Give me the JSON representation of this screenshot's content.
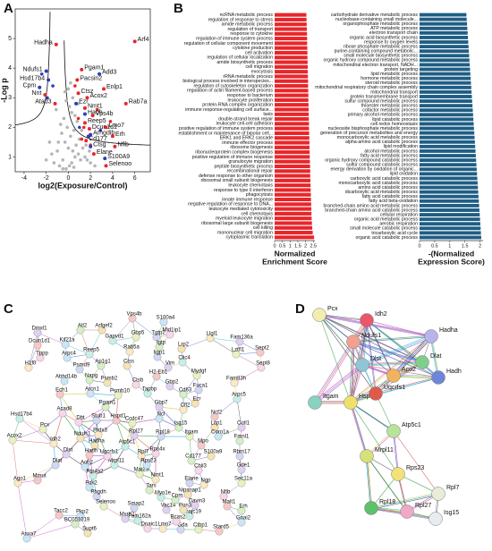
{
  "chart_data": [
    {
      "type": "scatter",
      "panel": "A",
      "x_label": "log2(Exposure/Control)",
      "y_label": "-Log p",
      "xlim": [
        -4.8,
        7.4
      ],
      "ylim": [
        0.5,
        6
      ],
      "xticks": [
        -4,
        -2,
        0,
        2,
        4,
        6
      ],
      "yticks": [
        1,
        2,
        3,
        4,
        5
      ],
      "series": [
        {
          "color": "#b5b5b5",
          "x": [
            -0.2,
            0.1,
            0.3,
            -0.5,
            0.6,
            -0.8,
            0.9,
            0.0,
            0.4,
            -0.3,
            1.1,
            -1.0,
            0.2,
            0.7,
            -0.6,
            1.3,
            -0.1,
            0.5,
            -1.3,
            1.5,
            0.8,
            -0.4,
            0.3,
            1.0,
            -0.9,
            1.7,
            0.1,
            -0.2,
            0.6,
            -1.5,
            2.0,
            0.4,
            -0.7,
            1.2,
            0.0,
            -1.1,
            1.6,
            0.2,
            -0.3,
            0.9,
            -2.0,
            2.4,
            -1.7,
            1.9,
            0.5,
            -0.5
          ],
          "y": [
            0.6,
            0.7,
            0.8,
            0.9,
            1.0,
            0.7,
            1.1,
            1.3,
            1.2,
            1.5,
            0.9,
            1.2,
            1.7,
            1.4,
            1.8,
            1.3,
            2.0,
            1.9,
            0.8,
            1.0,
            2.2,
            2.3,
            2.5,
            1.6,
            1.5,
            0.9,
            2.7,
            2.9,
            2.4,
            1.1,
            0.8,
            3.0,
            2.1,
            1.9,
            3.3,
            2.6,
            1.4,
            3.5,
            3.2,
            2.8,
            0.9,
            0.7,
            1.5,
            1.2,
            0.65,
            0.6
          ]
        },
        {
          "color": "#e8262a",
          "x": [
            0.9,
            1.4,
            2.6,
            3.8,
            0.6,
            1.2,
            2.0
          ],
          "y": [
            2.3,
            2.0,
            2.6,
            2.2,
            3.4,
            1.6,
            1.4
          ]
        },
        {
          "color": "#2a3fb8",
          "x": [
            -1.4,
            -2.4,
            1.0,
            1.8,
            2.9,
            -1.9
          ],
          "y": [
            3.4,
            3.8,
            2.0,
            1.7,
            1.9,
            3.0
          ]
        }
      ],
      "annotations": [
        {
          "text": "Hadha",
          "x": -1.1,
          "y": 4.8,
          "color": "#e8262a"
        },
        {
          "text": "Arf4",
          "x": 6.0,
          "y": 4.9,
          "color": "#e8262a"
        },
        {
          "text": "Pgam1",
          "x": 1.2,
          "y": 3.95,
          "color": "#e8262a"
        },
        {
          "text": "Ndufs1",
          "x": -2.0,
          "y": 3.9,
          "color": "#2a3fb8"
        },
        {
          "text": "Pacsin2",
          "x": 0.8,
          "y": 3.6,
          "color": "#e8262a"
        },
        {
          "text": "Add3",
          "x": 2.8,
          "y": 3.8,
          "color": "#2a3fb8"
        },
        {
          "text": "Hsd17b4",
          "x": -1.8,
          "y": 3.6,
          "color": "#2a3fb8"
        },
        {
          "text": "Cpm",
          "x": -2.6,
          "y": 3.35,
          "color": "#2a3fb8"
        },
        {
          "text": "Nnt",
          "x": -2.1,
          "y": 3.1,
          "color": "#e8262a"
        },
        {
          "text": "Ctsz",
          "x": 0.9,
          "y": 3.15,
          "color": "#e8262a"
        },
        {
          "text": "Acox2",
          "x": 1.7,
          "y": 3.0,
          "color": "#e8262a"
        },
        {
          "text": "Enlp1",
          "x": 3.2,
          "y": 3.3,
          "color": "#e8262a"
        },
        {
          "text": "Ezr",
          "x": 0.7,
          "y": 2.8,
          "color": "#2a3fb8"
        },
        {
          "text": "Nmt1",
          "x": 1.5,
          "y": 2.65,
          "color": "#e8262a"
        },
        {
          "text": "Hadh",
          "x": 1.5,
          "y": 2.45,
          "color": "#2a3fb8"
        },
        {
          "text": "Vps4b",
          "x": 2.2,
          "y": 2.4,
          "color": "#e8262a"
        },
        {
          "text": "Rab7a",
          "x": 5.2,
          "y": 2.8,
          "color": "#e8262a"
        },
        {
          "text": "Atad3",
          "x": -1.2,
          "y": 2.8,
          "color": "#e8262a"
        },
        {
          "text": "Reep5",
          "x": 1.5,
          "y": 2.15,
          "color": "#e8262a"
        },
        {
          "text": "Dcun1d1",
          "x": 1.9,
          "y": 1.95,
          "color": "#e8262a"
        },
        {
          "text": "Lmo7",
          "x": 3.4,
          "y": 2.0,
          "color": "#e8262a"
        },
        {
          "text": "Arhgdib",
          "x": 2.0,
          "y": 1.75,
          "color": "#2a3fb8"
        },
        {
          "text": "Erh",
          "x": 4.0,
          "y": 1.7,
          "color": "#e8262a"
        },
        {
          "text": "Cd177",
          "x": 1.6,
          "y": 1.55,
          "color": "#e8262a"
        },
        {
          "text": "Nfib",
          "x": 4.2,
          "y": 1.35,
          "color": "#e8262a"
        },
        {
          "text": "Ctsg",
          "x": 2.0,
          "y": 1.35,
          "color": "#2a3fb8"
        },
        {
          "text": "Elane",
          "x": 2.3,
          "y": 1.1,
          "color": "#e8262a"
        },
        {
          "text": "S100A9",
          "x": 3.3,
          "y": 0.95,
          "color": "#2a3fb8"
        },
        {
          "text": "Selenoo",
          "x": 3.4,
          "y": 0.7,
          "color": "#e8262a"
        }
      ]
    },
    {
      "type": "barh",
      "panel": "B",
      "color": "#e8262a",
      "x_label": [
        "Normalized",
        "Enrichment Score"
      ],
      "xlim": [
        0,
        2.6
      ],
      "xticks": [
        0,
        0.5,
        1,
        1.5,
        2,
        2.5
      ],
      "categories": [
        "ncRNA metabolic process",
        "regulation of response to stress",
        "amide metabolic process",
        "regulation of transport",
        "response to cytokine",
        "regulation of immune system process",
        "regulation of cellular component movement",
        "cytokine production",
        "cell activation",
        "regulation of cellular localization",
        "amide biosynthetic process",
        "cell migration",
        "exocytosis",
        "rRNA metabolic process",
        "biological process involved in interspecies...",
        "regulation of cytoskeleton organization",
        "regulation of actin filament-based process",
        "response to bacterium",
        "leukocyte proliferation",
        "protein-RNA complex organization",
        "immune response-regulating cell surface...",
        "taxis",
        "double-strand break repair",
        "leukocyte cell-cell adhesion",
        "positive regulation of immune system process",
        "establishment or maintenance of bipolar cell...",
        "ERK1 and ERK2 cascade",
        "immune effector process",
        "ribosome biogenesis",
        "ribonucleoprotein complex biogenesis",
        "positive regulation of immune response",
        "granulocyte migration",
        "peptide biosynthetic process",
        "recombinational repair",
        "defense response to other organism",
        "ribosomal small subunit biogenesis",
        "leukocyte chemotaxis",
        "response to type II interferon",
        "phagocytosis",
        "innate immune response",
        "negative regulation of response to DNA...",
        "leukocyte mediated cytotoxicity",
        "cell chemotaxis",
        "myeloid leukocyte migration",
        "ribosomal large subunit biogenesis",
        "cell killing",
        "mononuclear cell migration",
        "cytoplasmic translation"
      ],
      "values": [
        2.05,
        2.06,
        2.07,
        2.08,
        2.09,
        2.1,
        2.1,
        2.11,
        2.12,
        2.12,
        2.13,
        2.14,
        2.14,
        2.15,
        2.16,
        2.16,
        2.17,
        2.18,
        2.18,
        2.19,
        2.2,
        2.2,
        2.21,
        2.22,
        2.22,
        2.23,
        2.24,
        2.25,
        2.25,
        2.26,
        2.27,
        2.28,
        2.29,
        2.3,
        2.3,
        2.31,
        2.32,
        2.33,
        2.34,
        2.35,
        2.36,
        2.37,
        2.38,
        2.39,
        2.41,
        2.43,
        2.46,
        2.55
      ]
    },
    {
      "type": "barh",
      "color": "#1f5e84",
      "x_label": [
        "-(Normalized",
        "Expression Score)"
      ],
      "xlim": [
        0,
        2.1
      ],
      "xticks": [
        0,
        0.5,
        1,
        1.5,
        2
      ],
      "categories": [
        "carbohydrate derivative metabolic process",
        "nucleobase-containing small molecule...",
        "organophosphate metabolic process",
        "ATP metabolic process",
        "electron transport chain",
        "organic acid biosynthetic process",
        "response to oxygen levels",
        "ribose phosphate metabolic process",
        "purine-containing compound metabolic...",
        "small molecule biosynthetic process",
        "organic hydroxy compound metabolic process",
        "mitochondrial electron transport, NADH...",
        "protein targeting",
        "lipid metabolic process",
        "hormone metabolic process",
        "steroid metabolic process",
        "mitochondrial respiratory chain complex assembly",
        "mitochondrial transport",
        "protein transmembrane transport",
        "sulfur compound metabolic process",
        "thioester metabolic process",
        "cofactor metabolic process",
        "primary alcohol metabolic process",
        "lipid catabolic process",
        "cell redox homeostasis",
        "nucleoside bisphosphate metabolic process",
        "generation of precursor metabolites and energy",
        "monocarboxylic acid metabolic process",
        "alpha-amino acid catabolic process",
        "lipid modification",
        "alcohol metabolic process",
        "fatty acid metabolic process",
        "organic hydroxy compound catabolic process",
        "sulfur compound catabolic process",
        "energy derivation by oxidation of organic...",
        "lipid oxidation",
        "carboxylic acid catabolic process",
        "monocarboxylic acid catabolic process",
        "amino acid catabolic process",
        "dicarboxylic acid metabolic process",
        "fatty acid catabolic process",
        "fatty acid beta-oxidation",
        "branched-chain amino acid metabolic process",
        "branched-chain amino acid catabolic process",
        "cellular respiration",
        "organic acid metabolic process",
        "aerobic respiration",
        "small molecule catabolic process",
        "tricarboxylic acid cycle",
        "organic acid catabolic process"
      ],
      "values": [
        1.55,
        1.56,
        1.57,
        1.58,
        1.59,
        1.6,
        1.61,
        1.62,
        1.63,
        1.64,
        1.65,
        1.66,
        1.67,
        1.68,
        1.69,
        1.7,
        1.71,
        1.72,
        1.73,
        1.74,
        1.75,
        1.76,
        1.77,
        1.78,
        1.79,
        1.8,
        1.81,
        1.82,
        1.83,
        1.84,
        1.85,
        1.86,
        1.87,
        1.88,
        1.89,
        1.9,
        1.91,
        1.92,
        1.93,
        1.94,
        1.95,
        1.96,
        1.97,
        1.98,
        1.99,
        2.0,
        2.01,
        2.02,
        2.03,
        2.04
      ]
    }
  ],
  "network_c": {
    "panel": "C",
    "nodes": [
      "Vps4b",
      "S100a4",
      "Atl2",
      "Arfgef2",
      "Dmxl1",
      "Gapvd1",
      "Mid1ip1",
      "Llgl1",
      "Tgtp2",
      "Gbp5",
      "Dcun1d1",
      "Kif21a",
      "Igtp",
      "Lrp2",
      "Fam136a",
      "Reep5",
      "Tppp",
      "Rab5a",
      "Iigp1",
      "Lztfl1",
      "Sept2",
      "Arpc4",
      "Ap1g1",
      "Ctss",
      "Vim",
      "Clic4",
      "Sept8",
      "H1f0",
      "Psmd9",
      "Mydgf",
      "H2-Eb1",
      "Abhd14b",
      "Napg",
      "Psmb2",
      "Gbp2",
      "Tapbp",
      "Ctsb",
      "Fam83h",
      "Fuca1",
      "Psmb10",
      "Ech1",
      "Arcn1",
      "Cd63",
      "Ezr",
      "Gbp7",
      "Arpc5",
      "Acad8",
      "Cfl2",
      "Stub1",
      "Ccdc47",
      "Ncf2",
      "Ncl",
      "Isg15",
      "Lcp1",
      "Cotl1",
      "Hsd17b4",
      "Dbt",
      "Prdx3",
      "Rpl18",
      "Itgam",
      "Mpo",
      "Coro1a",
      "Fmnl1",
      "Hadha",
      "Rpl27",
      "Atp5c1",
      "Rps4x",
      "Rpl7",
      "Rbm17",
      "Acox2",
      "Hadh",
      "Aco2",
      "Cd177",
      "S100a9",
      "Gde1",
      "Ptp4a2",
      "Chil3",
      "Ngp",
      "Elane",
      "Sec11a",
      "Mmut",
      "Pck2",
      "Tars",
      "Nipsnap1",
      "Cavin3",
      "Dnajc19",
      "Nfib",
      "Ago1",
      "Phgdh",
      "Selenoo",
      "Malt1",
      "Pkp2",
      "BC051019",
      "Supt6",
      "Msrb2",
      "Fam162a",
      "Dnaic1",
      "Lmo7",
      "Gda",
      "Ctbp1",
      "Stard5",
      "Gnai2",
      "Erh",
      "Pon3",
      "Vac14",
      "Myo1e",
      "Bcas2",
      "Nmt1",
      "Smap2",
      "Mat2a",
      "Tacc2",
      "Anxa7",
      "Cpm",
      "Ndufs1",
      "Dlst",
      "Mrpl11",
      "Uqcrfs1",
      "Idh2",
      "Dlat",
      "Pcx",
      "Hspd1",
      "Rps23",
      "Pgam1"
    ]
  },
  "network_d": {
    "panel": "D",
    "nodes": [
      "Pcx",
      "Idh2",
      "Hadha",
      "Ndufs1",
      "Dlst",
      "Aco2",
      "Dlat",
      "Hadh",
      "Itgam",
      "Hspd1",
      "Uqcrfs1",
      "Atp5c1",
      "Mrpl11",
      "Rps23",
      "Rpl7",
      "Rpl18",
      "Rpl27",
      "Isg15"
    ]
  }
}
